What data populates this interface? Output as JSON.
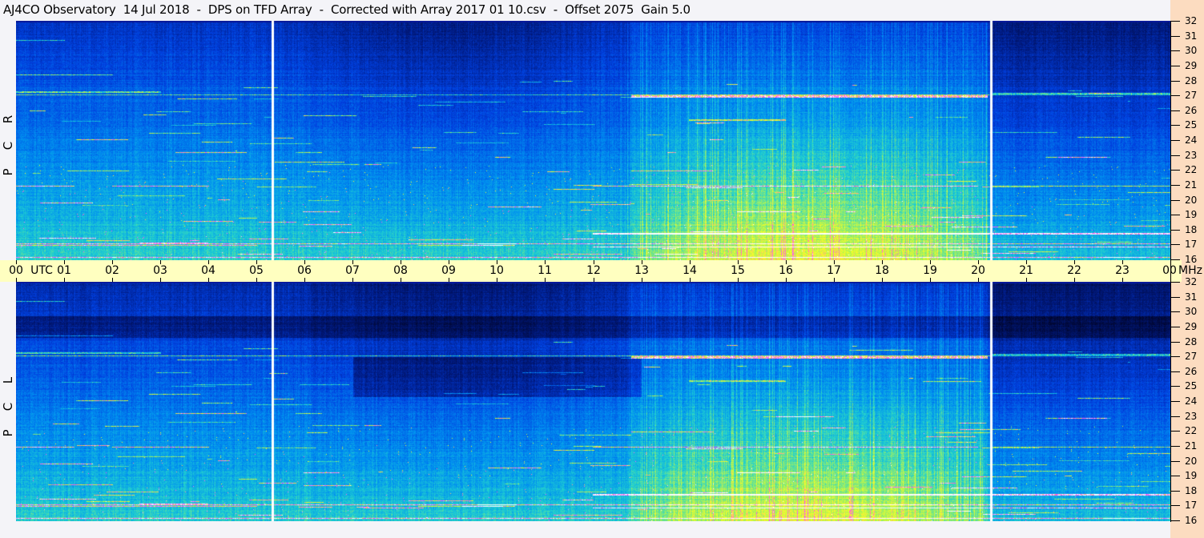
{
  "title": "AJ4CO Observatory  14 Jul 2018  -  DPS on TFD Array  -  Corrected with Array 2017 01 10.csv  -  Offset 2075  Gain 5.0",
  "chart_data": {
    "type": "heatmap",
    "subtype": "dynamic spectrogram",
    "panels": [
      {
        "label": [
          "R",
          "C",
          "P"
        ],
        "polarization": "RCP"
      },
      {
        "label": [
          "L",
          "C",
          "P"
        ],
        "polarization": "LCP"
      }
    ],
    "x_axis": {
      "unit_label": "UTC",
      "range_hours": [
        0,
        24
      ],
      "tick_labels": [
        "00",
        "01",
        "02",
        "03",
        "04",
        "05",
        "06",
        "07",
        "08",
        "09",
        "10",
        "11",
        "12",
        "13",
        "14",
        "15",
        "16",
        "17",
        "18",
        "19",
        "20",
        "21",
        "22",
        "23",
        "00"
      ]
    },
    "y_axis": {
      "unit_label": "MHz",
      "range": [
        16,
        32
      ],
      "tick_labels": [
        "32",
        "31",
        "30",
        "29",
        "28",
        "27",
        "26",
        "25",
        "24",
        "23",
        "22",
        "21",
        "20",
        "19",
        "18",
        "17",
        "16"
      ]
    },
    "data_gaps_utc_hours": [
      5.33,
      20.27
    ],
    "notable_bands_mhz": [
      27.1,
      25.4,
      22.0,
      21.0,
      17.8,
      17.1,
      16.2
    ],
    "colormap": [
      "#000018",
      "#001a80",
      "#0040e0",
      "#0090f0",
      "#20d0d0",
      "#a0f060",
      "#ffff20",
      "#ff40ff",
      "#ffffff"
    ]
  }
}
